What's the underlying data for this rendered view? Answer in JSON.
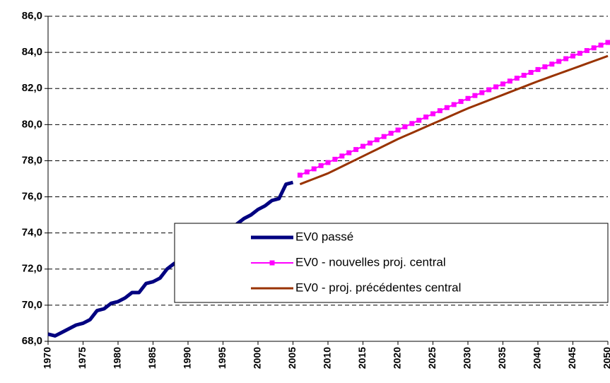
{
  "chart_data": {
    "type": "line",
    "xlim": [
      1970,
      2050
    ],
    "xticks": [
      1970,
      1975,
      1980,
      1985,
      1990,
      1995,
      2000,
      2005,
      2010,
      2015,
      2020,
      2025,
      2030,
      2035,
      2040,
      2045,
      2050
    ],
    "ylim": [
      68,
      86
    ],
    "yticks": [
      {
        "value": 68,
        "label": "68,0"
      },
      {
        "value": 70,
        "label": "70,0"
      },
      {
        "value": 72,
        "label": "72,0"
      },
      {
        "value": 74,
        "label": "74,0"
      },
      {
        "value": 76,
        "label": "76,0"
      },
      {
        "value": 78,
        "label": "78,0"
      },
      {
        "value": 80,
        "label": "80,0"
      },
      {
        "value": 82,
        "label": "82,0"
      },
      {
        "value": 84,
        "label": "84,0"
      },
      {
        "value": 86,
        "label": "86,0"
      }
    ],
    "grid": true,
    "legend": "center right",
    "series": [
      {
        "name": "EV0 passé",
        "color": "#000080",
        "marker": false,
        "x": [
          1970,
          1971,
          1972,
          1973,
          1974,
          1975,
          1976,
          1977,
          1978,
          1979,
          1980,
          1981,
          1982,
          1983,
          1984,
          1985,
          1986,
          1987,
          1988,
          1989,
          1990,
          1991,
          1992,
          1993,
          1994,
          1995,
          1996,
          1997,
          1998,
          1999,
          2000,
          2001,
          2002,
          2003,
          2004,
          2005
        ],
        "values": [
          68.4,
          68.3,
          68.5,
          68.7,
          68.9,
          69.0,
          69.2,
          69.7,
          69.8,
          70.1,
          70.2,
          70.4,
          70.7,
          70.7,
          71.2,
          71.3,
          71.5,
          72.0,
          72.3,
          72.5,
          72.7,
          72.9,
          73.2,
          73.3,
          73.6,
          73.8,
          74.1,
          74.5,
          74.8,
          75.0,
          75.3,
          75.5,
          75.8,
          75.9,
          76.7,
          76.8
        ]
      },
      {
        "name": "EV0 - nouvelles proj. central",
        "color": "#ff00ff",
        "marker": true,
        "x": [
          2006,
          2007,
          2008,
          2009,
          2010,
          2011,
          2012,
          2013,
          2014,
          2015,
          2016,
          2017,
          2018,
          2019,
          2020,
          2021,
          2022,
          2023,
          2024,
          2025,
          2026,
          2027,
          2028,
          2029,
          2030,
          2031,
          2032,
          2033,
          2034,
          2035,
          2036,
          2037,
          2038,
          2039,
          2040,
          2041,
          2042,
          2043,
          2044,
          2045,
          2046,
          2047,
          2048,
          2049,
          2050
        ],
        "values": [
          77.2,
          77.38,
          77.55,
          77.73,
          77.9,
          78.08,
          78.26,
          78.44,
          78.62,
          78.8,
          78.98,
          79.16,
          79.34,
          79.52,
          79.7,
          79.88,
          80.06,
          80.24,
          80.42,
          80.6,
          80.77,
          80.94,
          81.11,
          81.28,
          81.45,
          81.61,
          81.77,
          81.93,
          82.09,
          82.25,
          82.41,
          82.57,
          82.73,
          82.89,
          83.05,
          83.2,
          83.35,
          83.5,
          83.65,
          83.8,
          83.95,
          84.1,
          84.25,
          84.4,
          84.55
        ]
      },
      {
        "name": "EV0 - proj. précédentes central",
        "color": "#993300",
        "marker": false,
        "x": [
          2006,
          2007,
          2008,
          2009,
          2010,
          2011,
          2012,
          2013,
          2014,
          2015,
          2016,
          2017,
          2018,
          2019,
          2020,
          2021,
          2022,
          2023,
          2024,
          2025,
          2026,
          2027,
          2028,
          2029,
          2030,
          2031,
          2032,
          2033,
          2034,
          2035,
          2036,
          2037,
          2038,
          2039,
          2040,
          2041,
          2042,
          2043,
          2044,
          2045,
          2046,
          2047,
          2048,
          2049,
          2050
        ],
        "values": [
          76.7,
          76.85,
          77.0,
          77.15,
          77.3,
          77.49,
          77.68,
          77.87,
          78.06,
          78.25,
          78.44,
          78.63,
          78.82,
          79.01,
          79.2,
          79.37,
          79.54,
          79.71,
          79.88,
          80.05,
          80.22,
          80.39,
          80.56,
          80.73,
          80.9,
          81.05,
          81.2,
          81.35,
          81.5,
          81.65,
          81.8,
          81.95,
          82.1,
          82.25,
          82.4,
          82.54,
          82.68,
          82.82,
          82.96,
          83.1,
          83.24,
          83.38,
          83.52,
          83.66,
          83.8
        ]
      }
    ]
  }
}
